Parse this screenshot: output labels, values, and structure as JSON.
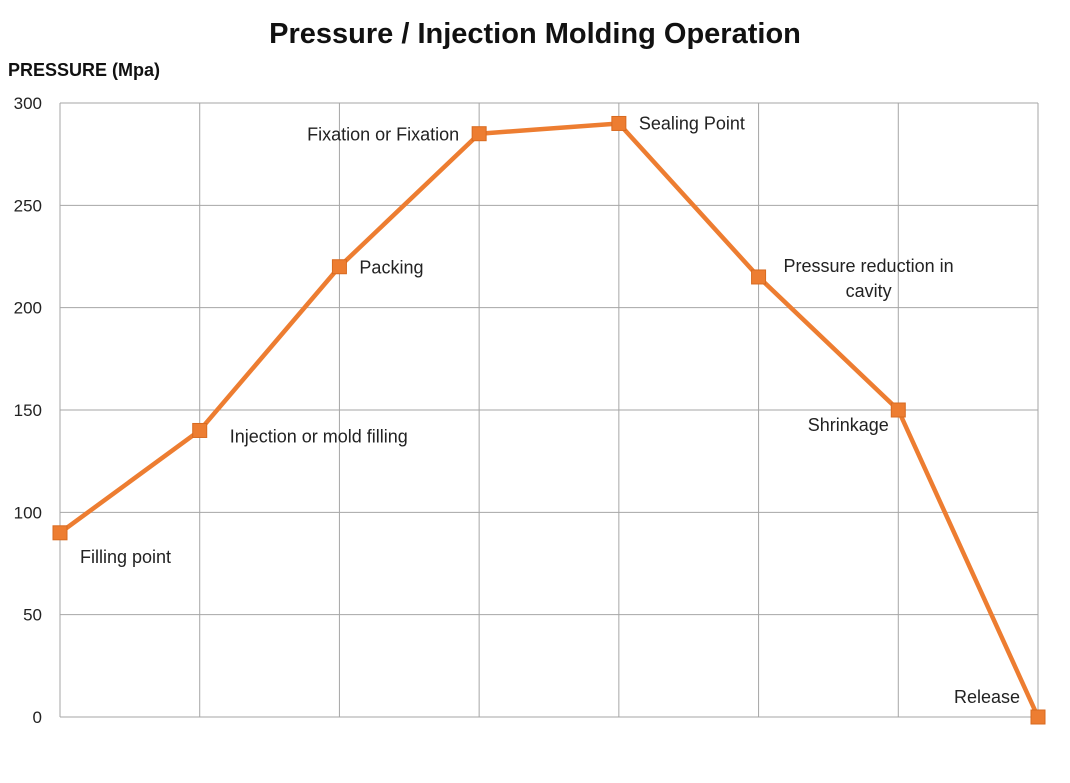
{
  "chart_data": {
    "type": "line",
    "title": "Pressure / Injection Molding Operation",
    "xlabel": "",
    "ylabel": "PRESSURE (Mpa)",
    "ylim": [
      0,
      300
    ],
    "yticks": [
      "0",
      "50",
      "100",
      "150",
      "200",
      "250",
      "300"
    ],
    "grid": true,
    "legend": "none",
    "color": "#ED7D31",
    "marker": "square",
    "points": [
      {
        "x": 0,
        "y": 90,
        "label": "Filling point"
      },
      {
        "x": 1,
        "y": 140,
        "label": "Injection or mold filling"
      },
      {
        "x": 2,
        "y": 220,
        "label": "Packing"
      },
      {
        "x": 3,
        "y": 285,
        "label": "Fixation or Fixation"
      },
      {
        "x": 4,
        "y": 290,
        "label": "Sealing Point"
      },
      {
        "x": 5,
        "y": 215,
        "label": "Pressure reduction in cavity"
      },
      {
        "x": 6,
        "y": 150,
        "label": "Shrinkage"
      },
      {
        "x": 7,
        "y": 0,
        "label": "Release"
      }
    ]
  }
}
